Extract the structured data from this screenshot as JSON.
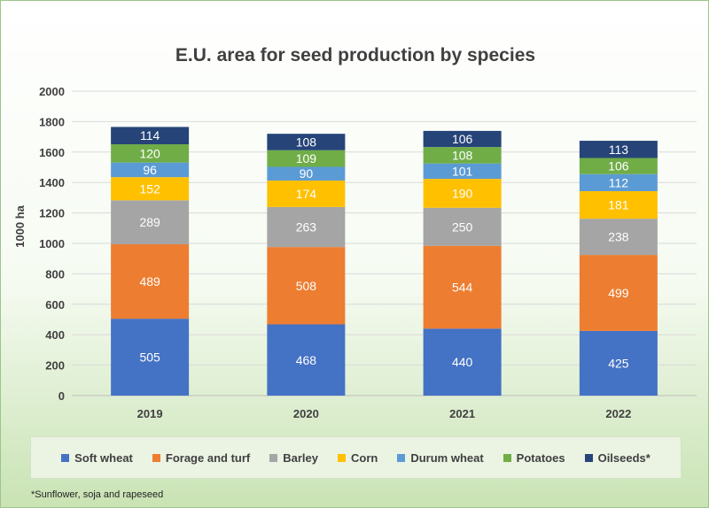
{
  "chart_data": {
    "type": "bar",
    "stacked": true,
    "title": "E.U. area for seed production by species",
    "ylabel": "1000 ha",
    "xlabel": "",
    "ylim": [
      0,
      2000
    ],
    "yticks": [
      0,
      200,
      400,
      600,
      800,
      1000,
      1200,
      1400,
      1600,
      1800,
      2000
    ],
    "grid": true,
    "legend_position": "bottom",
    "categories": [
      "2019",
      "2020",
      "2021",
      "2022"
    ],
    "series": [
      {
        "name": "Soft wheat",
        "color": "#4472c4",
        "label_color": "#ffffff",
        "values": [
          505,
          468,
          440,
          425
        ]
      },
      {
        "name": "Forage and turf",
        "color": "#ed7d31",
        "label_color": "#ffffff",
        "values": [
          489,
          508,
          544,
          499
        ]
      },
      {
        "name": "Barley",
        "color": "#a5a5a5",
        "label_color": "#ffffff",
        "values": [
          289,
          263,
          250,
          238
        ]
      },
      {
        "name": "Corn",
        "color": "#ffc000",
        "label_color": "#ffffff",
        "values": [
          152,
          174,
          190,
          181
        ]
      },
      {
        "name": "Durum wheat",
        "color": "#5b9bd5",
        "label_color": "#ffffff",
        "values": [
          96,
          90,
          101,
          112
        ]
      },
      {
        "name": "Potatoes",
        "color": "#70ad47",
        "label_color": "#ffffff",
        "values": [
          120,
          109,
          108,
          106
        ]
      },
      {
        "name": "Oilseeds*",
        "color": "#264478",
        "label_color": "#ffffff",
        "values": [
          114,
          108,
          106,
          113
        ]
      }
    ]
  },
  "footnote": "*Sunflower, soja and rapeseed"
}
